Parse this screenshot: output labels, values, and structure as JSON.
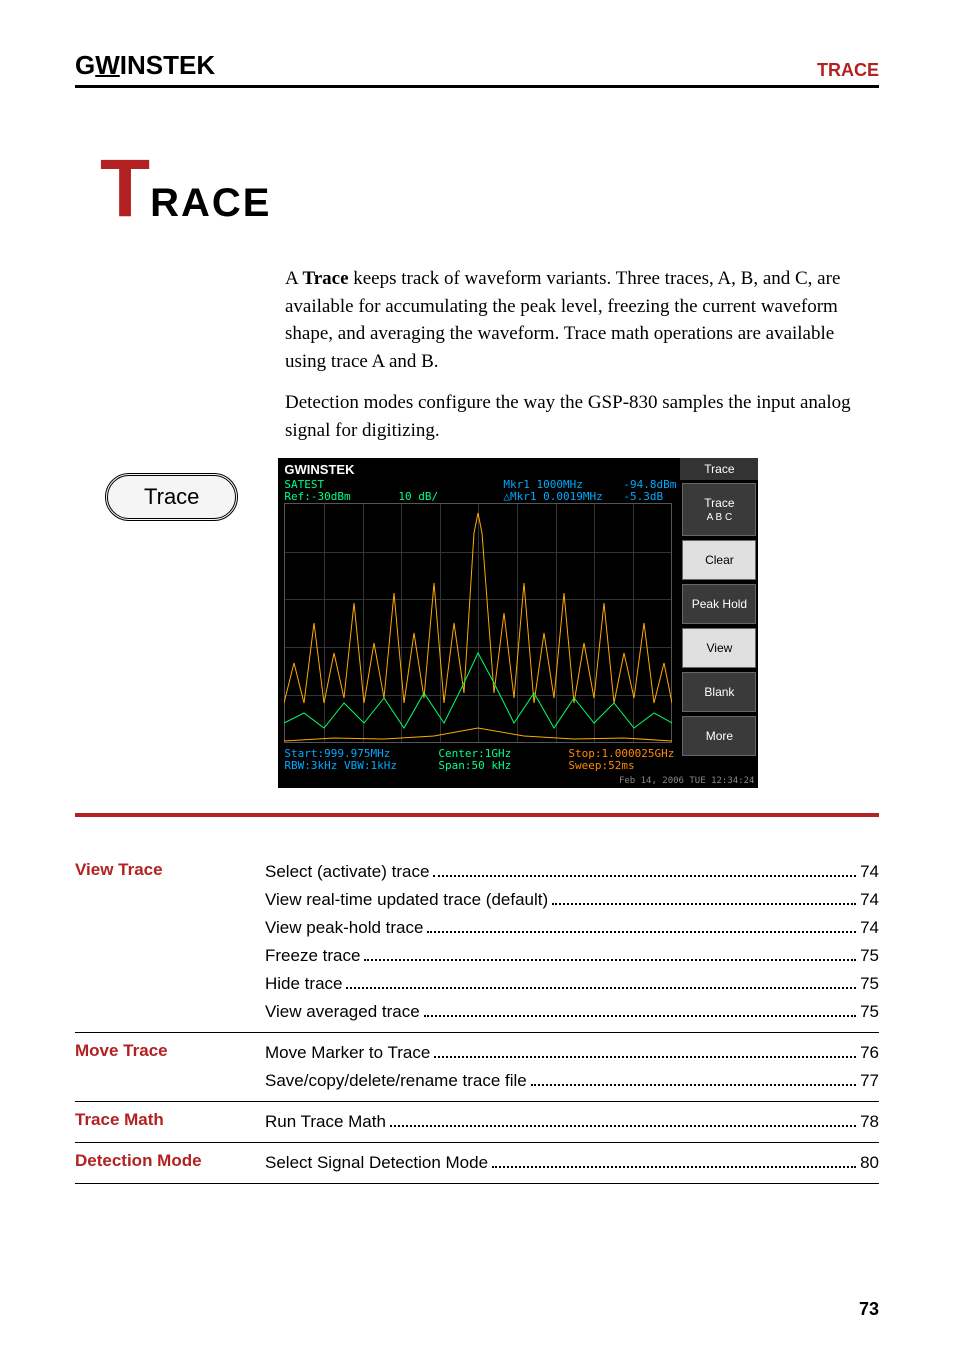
{
  "header": {
    "brand": "GWINSTEK",
    "section": "TRACE"
  },
  "chapter": {
    "big_letter": "T",
    "rest": "RACE"
  },
  "intro": {
    "para1_pre": "A ",
    "para1_bold": "Trace",
    "para1_post": " keeps track of waveform variants. Three traces, A, B, and C, are available for accumulating the peak level, freezing the current waveform shape, and averaging the waveform. Trace math operations are available using trace A and B.",
    "para2": "Detection modes configure the way the GSP-830 samples the input analog signal for digitizing."
  },
  "trace_button": "Trace",
  "screenshot": {
    "brand": "GWINSTEK",
    "satest": "SATEST",
    "ref": "Ref:-30dBm",
    "db": "10 dB/",
    "mkr1": "Mkr1 1000MHz",
    "mkr2": "△Mkr1 0.0019MHz",
    "val1": "-94.8dBm",
    "val2": "-5.3dB",
    "start": "Start:999.975MHz",
    "rbw": "RBW:3kHz    VBW:1kHz",
    "center": "Center:1GHz",
    "span": "Span:50 kHz",
    "stop": "Stop:1.000025GHz",
    "sweep": "Sweep:52ms",
    "date": "Feb 14, 2006\nTUE 12:34:24",
    "side_title": "Trace",
    "side_trace": "Trace",
    "side_abc": "A   B   C",
    "side_clear": "Clear",
    "side_peak": "Peak Hold",
    "side_view": "View",
    "side_blank": "Blank",
    "side_more": "More",
    "colors": {
      "bg": "#000000",
      "satest": "#00ff88",
      "mkr": "#00aaff",
      "stop": "#ff8800",
      "waveform_yellow": "#ffaa00",
      "waveform_green": "#00ff66"
    }
  },
  "toc": [
    {
      "label": "View Trace",
      "entries": [
        {
          "text": "Select (activate) trace",
          "page": "74"
        },
        {
          "text": "View real-time updated trace (default)",
          "page": "74"
        },
        {
          "text": "View peak-hold trace",
          "page": "74"
        },
        {
          "text": "Freeze trace",
          "page": "75"
        },
        {
          "text": "Hide trace",
          "page": "75"
        },
        {
          "text": "View averaged trace",
          "page": "75"
        }
      ]
    },
    {
      "label": "Move Trace",
      "entries": [
        {
          "text": "Move Marker to Trace",
          "page": "76"
        },
        {
          "text": "Save/copy/delete/rename trace file",
          "page": "77"
        }
      ]
    },
    {
      "label": "Trace Math",
      "entries": [
        {
          "text": "Run Trace Math",
          "page": "78"
        }
      ]
    },
    {
      "label": "Detection Mode",
      "entries": [
        {
          "text": "Select Signal Detection Mode",
          "page": "80"
        }
      ]
    }
  ],
  "page_number": "73"
}
